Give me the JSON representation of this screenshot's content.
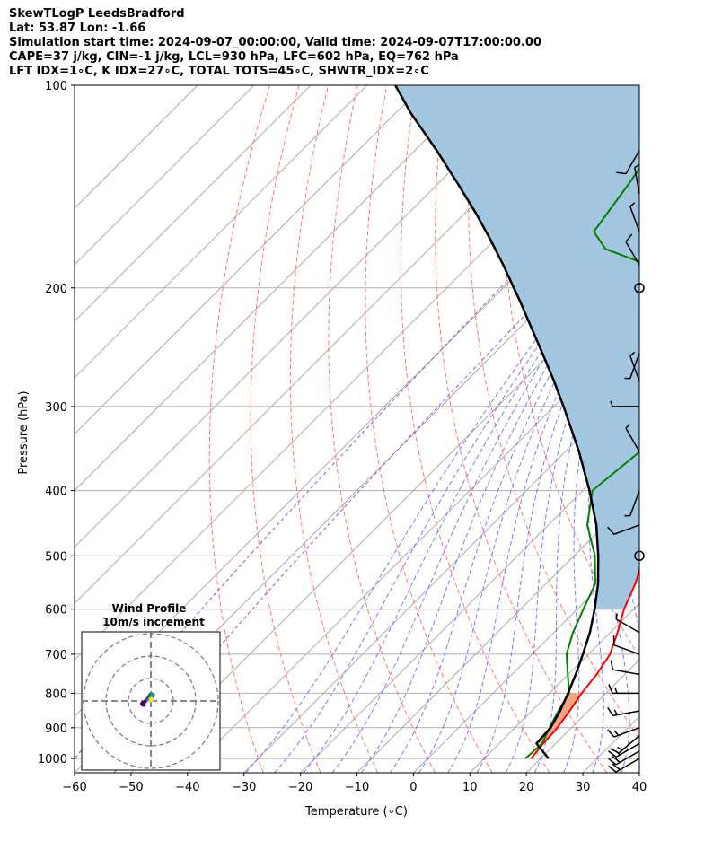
{
  "header": {
    "line1": "SkewTLogP LeedsBradford",
    "line2": "Lat: 53.87   Lon: -1.66",
    "line3": "Simulation start time: 2024-09-07_00:00:00, Valid time: 2024-09-07T17:00:00.00",
    "line4": "CAPE=37 j/kg, CIN=-1 j/kg, LCL=930 hPa, LFC=602 hPa, EQ=762 hPa",
    "line5": "LFT IDX=1∘C, K IDX=27∘C, TOTAL TOTS=45∘C, SHWTR_IDX=2∘C"
  },
  "chart_data": {
    "type": "skewt",
    "xlabel": "Temperature (∘C)",
    "ylabel": "Pressure (hPa)",
    "xlim": [
      -60,
      40
    ],
    "ylim": [
      1050,
      100
    ],
    "y_scale": "log",
    "grid": true,
    "x_ticks": [
      "−60",
      "−50",
      "−40",
      "−30",
      "−20",
      "−10",
      "0",
      "10",
      "20",
      "30",
      "40"
    ],
    "x_tick_values": [
      -60,
      -50,
      -40,
      -30,
      -20,
      -10,
      0,
      10,
      20,
      30,
      40
    ],
    "y_ticks": [
      "100",
      "200",
      "300",
      "400",
      "500",
      "600",
      "700",
      "800",
      "900",
      "1000"
    ],
    "y_tick_values": [
      100,
      200,
      300,
      400,
      500,
      600,
      700,
      800,
      900,
      1000
    ],
    "temperature": {
      "color": "#ff0000",
      "points": [
        [
          18.3,
          1000
        ],
        [
          17.8,
          950
        ],
        [
          17.5,
          900
        ],
        [
          16.7,
          850
        ],
        [
          15.7,
          800
        ],
        [
          15.0,
          750
        ],
        [
          13.8,
          700
        ],
        [
          11.3,
          650
        ],
        [
          8.3,
          600
        ],
        [
          5.8,
          550
        ],
        [
          2.4,
          500
        ],
        [
          -0.5,
          450
        ],
        [
          -4.7,
          400
        ],
        [
          -9.9,
          350
        ],
        [
          -16.5,
          300
        ],
        [
          -21.5,
          275
        ],
        [
          -27.3,
          250
        ],
        [
          -34.6,
          225
        ],
        [
          -40.6,
          210
        ],
        [
          -45.0,
          200
        ],
        [
          -49.6,
          185
        ],
        [
          -54.2,
          170
        ],
        [
          -58.7,
          155
        ],
        [
          -62.5,
          140
        ],
        [
          -66.0,
          125
        ],
        [
          -70.6,
          110
        ],
        [
          -73.7,
          100
        ]
      ]
    },
    "dewpoint": {
      "color": "#008000",
      "points": [
        [
          17.3,
          1000
        ],
        [
          17.6,
          950
        ],
        [
          16.1,
          900
        ],
        [
          14.7,
          850
        ],
        [
          13.5,
          800
        ],
        [
          9.9,
          750
        ],
        [
          6.1,
          700
        ],
        [
          3.4,
          650
        ],
        [
          1.1,
          600
        ],
        [
          -1.3,
          550
        ],
        [
          -6.3,
          500
        ],
        [
          -13.1,
          450
        ],
        [
          -18.3,
          400
        ],
        [
          -16.8,
          350
        ],
        [
          -17.6,
          325
        ],
        [
          -20.1,
          300
        ],
        [
          -25.3,
          275
        ],
        [
          -30.7,
          250
        ],
        [
          -33.6,
          225
        ],
        [
          -36.6,
          210
        ],
        [
          -39.9,
          200
        ],
        [
          -48.4,
          185
        ],
        [
          -58.8,
          175
        ],
        [
          -63.9,
          165
        ],
        [
          -66.2,
          140
        ],
        [
          -69.3,
          115
        ],
        [
          -71.4,
          100
        ]
      ]
    },
    "parcel": {
      "color": "#000000",
      "points": [
        [
          21.4,
          1000
        ],
        [
          16.6,
          950
        ],
        [
          16.3,
          900
        ],
        [
          15.0,
          850
        ],
        [
          13.3,
          800
        ],
        [
          11.3,
          750
        ],
        [
          9.0,
          700
        ],
        [
          6.4,
          650
        ],
        [
          3.1,
          600
        ],
        [
          -0.8,
          550
        ],
        [
          -5.7,
          500
        ],
        [
          -11.5,
          450
        ],
        [
          -18.8,
          400
        ],
        [
          -27.6,
          350
        ],
        [
          -38.3,
          300
        ],
        [
          -44.5,
          275
        ],
        [
          -51.5,
          250
        ],
        [
          -59.3,
          225
        ],
        [
          -64.4,
          210
        ],
        [
          -68.1,
          200
        ],
        [
          -74.0,
          185
        ],
        [
          -80.6,
          170
        ],
        [
          -88.0,
          155
        ],
        [
          -96.5,
          140
        ],
        [
          -106.1,
          125
        ],
        [
          -117.3,
          110
        ],
        [
          -125.0,
          100
        ]
      ]
    },
    "cape_fill_color": "#a3c6e0",
    "cin_fill_color": "#f4a582",
    "dry_adiabats_color": "#ff6666",
    "moist_adiabats_color": "#6a6aff",
    "mixing_ratio_color": "#9c4fd0",
    "isotherm_color": "#aaaaaa",
    "wind_barbs": [
      {
        "pressure": 1000,
        "speed_kt": 20,
        "direction": 240
      },
      {
        "pressure": 975,
        "speed_kt": 20,
        "direction": 240
      },
      {
        "pressure": 950,
        "speed_kt": 15,
        "direction": 240
      },
      {
        "pressure": 925,
        "speed_kt": 15,
        "direction": 230
      },
      {
        "pressure": 900,
        "speed_kt": 15,
        "direction": 250
      },
      {
        "pressure": 850,
        "speed_kt": 15,
        "direction": 260
      },
      {
        "pressure": 800,
        "speed_kt": 15,
        "direction": 270
      },
      {
        "pressure": 750,
        "speed_kt": 10,
        "direction": 280
      },
      {
        "pressure": 700,
        "speed_kt": 10,
        "direction": 290
      },
      {
        "pressure": 650,
        "speed_kt": 5,
        "direction": 300
      },
      {
        "pressure": 500,
        "speed_kt": 0,
        "direction": 0
      },
      {
        "pressure": 450,
        "speed_kt": 10,
        "direction": 250
      },
      {
        "pressure": 400,
        "speed_kt": 5,
        "direction": 200
      },
      {
        "pressure": 350,
        "speed_kt": 5,
        "direction": 330
      },
      {
        "pressure": 300,
        "speed_kt": 5,
        "direction": 270
      },
      {
        "pressure": 275,
        "speed_kt": 5,
        "direction": 340
      },
      {
        "pressure": 250,
        "speed_kt": 5,
        "direction": 200
      },
      {
        "pressure": 200,
        "speed_kt": 0,
        "direction": 0
      },
      {
        "pressure": 185,
        "speed_kt": 10,
        "direction": 330
      },
      {
        "pressure": 165,
        "speed_kt": 5,
        "direction": 340
      },
      {
        "pressure": 145,
        "speed_kt": 5,
        "direction": 350
      },
      {
        "pressure": 125,
        "speed_kt": 10,
        "direction": 210
      }
    ],
    "inset": {
      "title": "Wind Profile",
      "subtitle": "10m/s increment",
      "hodograph": [
        [
          -2.5,
          -1.5
        ],
        [
          -3.0,
          -1.4
        ],
        [
          -3.3,
          -1.0
        ],
        [
          -2.5,
          -0.5
        ],
        [
          -1.5,
          0.5
        ],
        [
          -0.8,
          1.5
        ],
        [
          -0.2,
          2.4
        ],
        [
          0.5,
          2.5
        ],
        [
          0.8,
          2.3
        ],
        [
          0.7,
          1.8
        ],
        [
          0.4,
          1.2
        ],
        [
          0.0,
          0.9
        ],
        [
          -0.4,
          0.6
        ],
        [
          -0.2,
          0.3
        ],
        [
          0.1,
          0.2
        ],
        [
          0.3,
          0.4
        ],
        [
          0.2,
          0.8
        ]
      ],
      "ring_spacing_ms": 10
    }
  }
}
